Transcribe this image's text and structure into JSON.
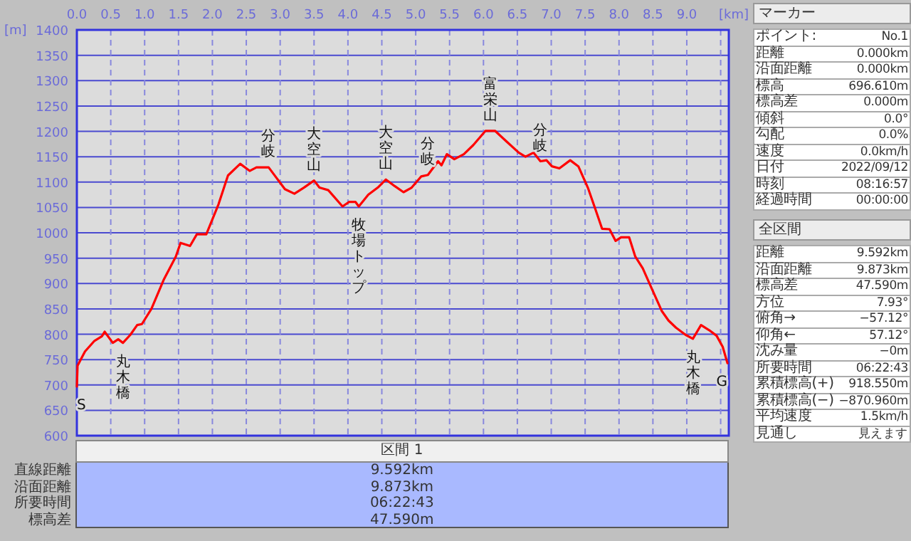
{
  "chart_data": [
    {
      "type": "line",
      "xlabel": "[km]",
      "ylabel": "[m]",
      "grid": true,
      "xlim": [
        0,
        9.62
      ],
      "ylim": [
        600,
        1400
      ],
      "xticks": [
        {
          "value": 0,
          "label": "0.0"
        },
        {
          "value": 0.5,
          "label": "0.5"
        },
        {
          "value": 1,
          "label": "1.0"
        },
        {
          "value": 1.5,
          "label": "1.5"
        },
        {
          "value": 2,
          "label": "2.0"
        },
        {
          "value": 2.5,
          "label": "2.5"
        },
        {
          "value": 3,
          "label": "3.0"
        },
        {
          "value": 3.5,
          "label": "3.5"
        },
        {
          "value": 4,
          "label": "4.0"
        },
        {
          "value": 4.5,
          "label": "4.5"
        },
        {
          "value": 5,
          "label": "5.0"
        },
        {
          "value": 5.5,
          "label": "5.5"
        },
        {
          "value": 6,
          "label": "6.0"
        },
        {
          "value": 6.5,
          "label": "6.5"
        },
        {
          "value": 7,
          "label": "7.0"
        },
        {
          "value": 7.5,
          "label": "7.5"
        },
        {
          "value": 8,
          "label": "8.0"
        },
        {
          "value": 8.5,
          "label": "8.5"
        },
        {
          "value": 9,
          "label": "9.0"
        },
        {
          "value": 9.5,
          "label": null
        }
      ],
      "yticks": [
        600,
        650,
        700,
        750,
        800,
        850,
        900,
        950,
        1000,
        1050,
        1100,
        1150,
        1200,
        1250,
        1300,
        1350,
        1400
      ],
      "series": [
        {
          "color": "#ff0000",
          "x": [
            0,
            0.01,
            0.12,
            0.26,
            0.37,
            0.41,
            0.53,
            0.61,
            0.68,
            0.79,
            0.89,
            0.96,
            1.1,
            1.28,
            1.46,
            1.53,
            1.67,
            1.77,
            1.91,
            2.09,
            2.23,
            2.41,
            2.55,
            2.65,
            2.83,
            2.93,
            3.07,
            3.21,
            3.35,
            3.5,
            3.58,
            3.71,
            3.92,
            4.02,
            4.11,
            4.16,
            4.3,
            4.44,
            4.56,
            4.69,
            4.82,
            4.94,
            5.08,
            5.18,
            5.33,
            5.38,
            5.46,
            5.57,
            5.71,
            5.85,
            6.03,
            6.17,
            6.34,
            6.52,
            6.62,
            6.74,
            6.84,
            6.93,
            7.01,
            7.12,
            7.28,
            7.4,
            7.54,
            7.65,
            7.75,
            7.86,
            7.95,
            8.03,
            8.15,
            8.24,
            8.35,
            8.49,
            8.63,
            8.73,
            8.84,
            8.98,
            9.09,
            9.21,
            9.33,
            9.44,
            9.53,
            9.6
          ],
          "values": [
            697,
            738,
            766,
            787,
            796,
            805,
            783,
            790,
            783,
            799,
            818,
            820,
            850,
            907,
            953,
            980,
            974,
            997,
            997,
            1056,
            1113,
            1136,
            1122,
            1129,
            1129,
            1111,
            1086,
            1077,
            1089,
            1103,
            1089,
            1084,
            1052,
            1061,
            1061,
            1052,
            1075,
            1089,
            1105,
            1092,
            1080,
            1089,
            1111,
            1114,
            1141,
            1133,
            1155,
            1145,
            1155,
            1173,
            1201,
            1201,
            1180,
            1158,
            1150,
            1158,
            1141,
            1143,
            1131,
            1127,
            1143,
            1131,
            1089,
            1047,
            1008,
            1007,
            984,
            991,
            991,
            953,
            930,
            888,
            846,
            827,
            813,
            799,
            791,
            818,
            808,
            797,
            775,
            743
          ]
        }
      ],
      "annotations": [
        {
          "text": "S",
          "x": 0,
          "y": 697
        },
        {
          "text": "丸木橋",
          "x": 0.68,
          "y": 783
        },
        {
          "text": "分岐",
          "x": 2.83,
          "y": 1129
        },
        {
          "text": "大空山",
          "x": 3.5,
          "y": 1103
        },
        {
          "text": "牧場トップ",
          "x": 4.16,
          "y": 1052
        },
        {
          "text": "大空山",
          "x": 4.56,
          "y": 1105
        },
        {
          "text": "分岐",
          "x": 5.18,
          "y": 1114
        },
        {
          "text": "富栄山",
          "x": 6.1,
          "y": 1201
        },
        {
          "text": "分岐",
          "x": 6.84,
          "y": 1141
        },
        {
          "text": "丸木橋",
          "x": 9.09,
          "y": 791
        },
        {
          "text": "G",
          "x": 9.6,
          "y": 743
        }
      ]
    },
    {
      "type": "other",
      "title": "マーカー",
      "annotations": [
        "ポイント:",
        "No.1",
        "距離",
        "0.000km",
        "沿面距離",
        "0.000km",
        "標高",
        "696.610m",
        "標高差",
        "0.000m",
        "傾斜",
        "0.0°",
        "勾配",
        "0.0%",
        "速度",
        "0.0km/h",
        "日付",
        "2022/09/12",
        "時刻",
        "08:16:57",
        "経過時間",
        "00:00:00"
      ]
    },
    {
      "type": "other",
      "title": "全区間",
      "annotations": [
        "距離",
        "9.592km",
        "沿面距離",
        "9.873km",
        "標高差",
        "47.590m",
        "方位",
        "7.93°",
        "俯角→",
        "−57.12°",
        "仰角←",
        "57.12°",
        "沈み量",
        "−0m",
        "所要時間",
        "06:22:43",
        "累積標高(+)",
        "918.550m",
        "累積標高(−)",
        "−870.960m",
        "平均速度",
        "1.5km/h",
        "見通し",
        "見えます"
      ]
    },
    {
      "type": "other",
      "title": "区間 1",
      "annotations": [
        "直線距離",
        "9.592km",
        "沿面距離",
        "9.873km",
        "所要時間",
        "06:22:43",
        "標高差",
        "47.590m"
      ]
    }
  ]
}
